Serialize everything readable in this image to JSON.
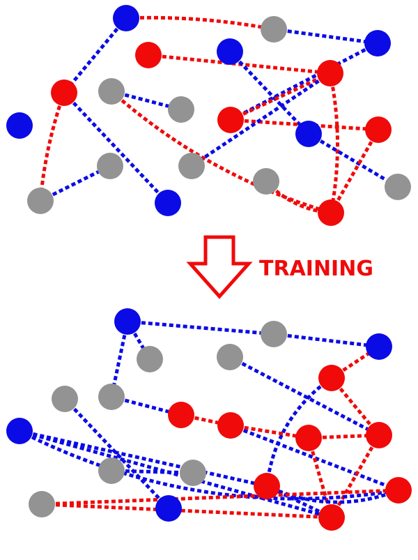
{
  "colors": {
    "blue": "#0b0be6",
    "red": "#f00a0a",
    "gray": "#939393",
    "background": "#ffffff"
  },
  "arrow": {
    "label": "TRAINING",
    "color": "#f00a0a"
  },
  "before": {
    "nodes": [
      {
        "id": "b1",
        "color": "blue"
      },
      {
        "id": "g1",
        "color": "gray"
      },
      {
        "id": "b2",
        "color": "blue"
      },
      {
        "id": "r1",
        "color": "red"
      },
      {
        "id": "b3",
        "color": "blue"
      },
      {
        "id": "r2",
        "color": "red"
      },
      {
        "id": "r3",
        "color": "red"
      },
      {
        "id": "g2",
        "color": "gray"
      },
      {
        "id": "g3",
        "color": "gray"
      },
      {
        "id": "b4",
        "color": "blue"
      },
      {
        "id": "r4",
        "color": "red"
      },
      {
        "id": "b5",
        "color": "blue"
      },
      {
        "id": "r5",
        "color": "red"
      },
      {
        "id": "g4",
        "color": "gray"
      },
      {
        "id": "g5",
        "color": "gray"
      },
      {
        "id": "g6",
        "color": "gray"
      },
      {
        "id": "g7",
        "color": "gray"
      },
      {
        "id": "b6",
        "color": "blue"
      },
      {
        "id": "r6",
        "color": "red"
      },
      {
        "id": "g8",
        "color": "gray"
      }
    ],
    "edges": [
      {
        "from": "b1",
        "to": "g1",
        "color": "red"
      },
      {
        "from": "b1",
        "to": "r3",
        "color": "blue"
      },
      {
        "from": "g1",
        "to": "b2",
        "color": "blue"
      },
      {
        "from": "r1",
        "to": "r2",
        "color": "red"
      },
      {
        "from": "b3",
        "to": "b5",
        "color": "blue"
      },
      {
        "from": "b2",
        "to": "r4",
        "color": "blue"
      },
      {
        "from": "r4",
        "to": "r2",
        "color": "red"
      },
      {
        "from": "r4",
        "to": "r5",
        "color": "red"
      },
      {
        "from": "r3",
        "to": "g7",
        "color": "red"
      },
      {
        "from": "r3",
        "to": "b6",
        "color": "blue"
      },
      {
        "from": "g2",
        "to": "g3",
        "color": "blue"
      },
      {
        "from": "g2",
        "to": "r6",
        "color": "red"
      },
      {
        "from": "r2",
        "to": "r6",
        "color": "red"
      },
      {
        "from": "r2",
        "to": "g5",
        "color": "blue"
      },
      {
        "from": "g7",
        "to": "g4",
        "color": "blue"
      },
      {
        "from": "b5",
        "to": "g8",
        "color": "blue"
      },
      {
        "from": "r5",
        "to": "r6",
        "color": "red"
      },
      {
        "from": "g6",
        "to": "r6",
        "color": "red"
      }
    ]
  },
  "after": {
    "nodes": [
      {
        "id": "b1",
        "color": "blue"
      },
      {
        "id": "g1",
        "color": "gray"
      },
      {
        "id": "b2",
        "color": "blue"
      },
      {
        "id": "g2",
        "color": "gray"
      },
      {
        "id": "g3",
        "color": "gray"
      },
      {
        "id": "r1",
        "color": "red"
      },
      {
        "id": "g4",
        "color": "gray"
      },
      {
        "id": "g5",
        "color": "gray"
      },
      {
        "id": "r2",
        "color": "red"
      },
      {
        "id": "r3",
        "color": "red"
      },
      {
        "id": "b3",
        "color": "blue"
      },
      {
        "id": "r4",
        "color": "red"
      },
      {
        "id": "r5",
        "color": "red"
      },
      {
        "id": "g6",
        "color": "gray"
      },
      {
        "id": "g7",
        "color": "gray"
      },
      {
        "id": "r6",
        "color": "red"
      },
      {
        "id": "r7",
        "color": "red"
      },
      {
        "id": "g8",
        "color": "gray"
      },
      {
        "id": "b4",
        "color": "blue"
      },
      {
        "id": "r8",
        "color": "red"
      }
    ],
    "edges": [
      {
        "from": "b1",
        "to": "g1",
        "color": "blue"
      },
      {
        "from": "g1",
        "to": "b2",
        "color": "blue"
      },
      {
        "from": "b1",
        "to": "g2",
        "color": "blue"
      },
      {
        "from": "b1",
        "to": "g5",
        "color": "blue"
      },
      {
        "from": "g3",
        "to": "r5",
        "color": "blue"
      },
      {
        "from": "r1",
        "to": "b2",
        "color": "red"
      },
      {
        "from": "r1",
        "to": "r5",
        "color": "red"
      },
      {
        "from": "r1",
        "to": "r6",
        "color": "blue"
      },
      {
        "from": "g5",
        "to": "r2",
        "color": "blue"
      },
      {
        "from": "g4",
        "to": "b4",
        "color": "blue"
      },
      {
        "from": "r2",
        "to": "r3",
        "color": "red"
      },
      {
        "from": "r3",
        "to": "r4",
        "color": "red"
      },
      {
        "from": "r3",
        "to": "r8",
        "color": "blue"
      },
      {
        "from": "b3",
        "to": "r6",
        "color": "blue"
      },
      {
        "from": "r4",
        "to": "r5",
        "color": "red"
      },
      {
        "from": "r4",
        "to": "r7",
        "color": "red"
      },
      {
        "from": "r5",
        "to": "r7",
        "color": "red"
      },
      {
        "from": "g6",
        "to": "g7",
        "color": "blue"
      },
      {
        "from": "g8",
        "to": "r7",
        "color": "red"
      },
      {
        "from": "r7",
        "to": "r6",
        "color": "blue"
      },
      {
        "from": "r8",
        "to": "r6",
        "color": "blue"
      },
      {
        "from": "b3",
        "to": "r8",
        "color": "blue"
      },
      {
        "from": "b3",
        "to": "r7",
        "color": "blue"
      },
      {
        "from": "g8",
        "to": "r8",
        "color": "red"
      }
    ]
  }
}
